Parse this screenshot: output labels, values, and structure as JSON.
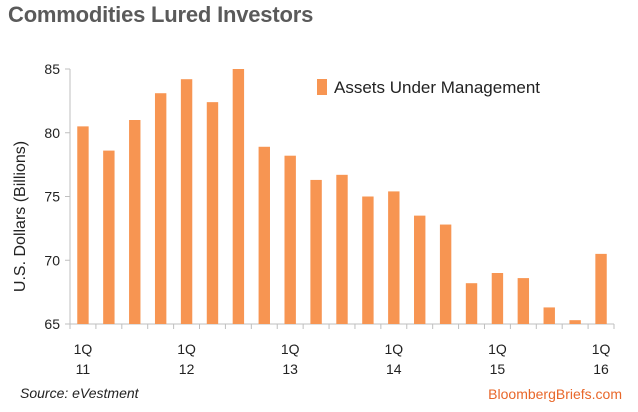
{
  "title": "Commodities Lured Investors",
  "source": "Source: eVestment",
  "brand": "BloombergBriefs.com",
  "colors": {
    "bar": "#f79552",
    "axis": "#bfbfbf",
    "brand": "#e8672a"
  },
  "chart_data": {
    "type": "bar",
    "ylabel": "U.S. Dollars (Billions)",
    "ylim": [
      65,
      85
    ],
    "yticks": [
      65,
      70,
      75,
      80,
      85
    ],
    "grid": false,
    "legend": {
      "position": "top-right",
      "entries": [
        "Assets Under Management"
      ]
    },
    "categories": [
      "1Q 11",
      "2Q 11",
      "3Q 11",
      "4Q 11",
      "1Q 12",
      "2Q 12",
      "3Q 12",
      "4Q 12",
      "1Q 13",
      "2Q 13",
      "3Q 13",
      "4Q 13",
      "1Q 14",
      "2Q 14",
      "3Q 14",
      "4Q 14",
      "1Q 15",
      "2Q 15",
      "3Q 15",
      "4Q 15",
      "1Q 16"
    ],
    "x_tick_labels": [
      {
        "index": 0,
        "line1": "1Q",
        "line2": "11"
      },
      {
        "index": 4,
        "line1": "1Q",
        "line2": "12"
      },
      {
        "index": 8,
        "line1": "1Q",
        "line2": "13"
      },
      {
        "index": 12,
        "line1": "1Q",
        "line2": "14"
      },
      {
        "index": 16,
        "line1": "1Q",
        "line2": "15"
      },
      {
        "index": 20,
        "line1": "1Q",
        "line2": "16"
      }
    ],
    "series": [
      {
        "name": "Assets Under Management",
        "values": [
          80.5,
          78.6,
          81.0,
          83.1,
          84.2,
          82.4,
          85.1,
          78.9,
          78.2,
          76.3,
          76.7,
          75.0,
          75.4,
          73.5,
          72.8,
          68.2,
          69.0,
          68.6,
          66.3,
          65.3,
          70.5
        ]
      }
    ]
  }
}
